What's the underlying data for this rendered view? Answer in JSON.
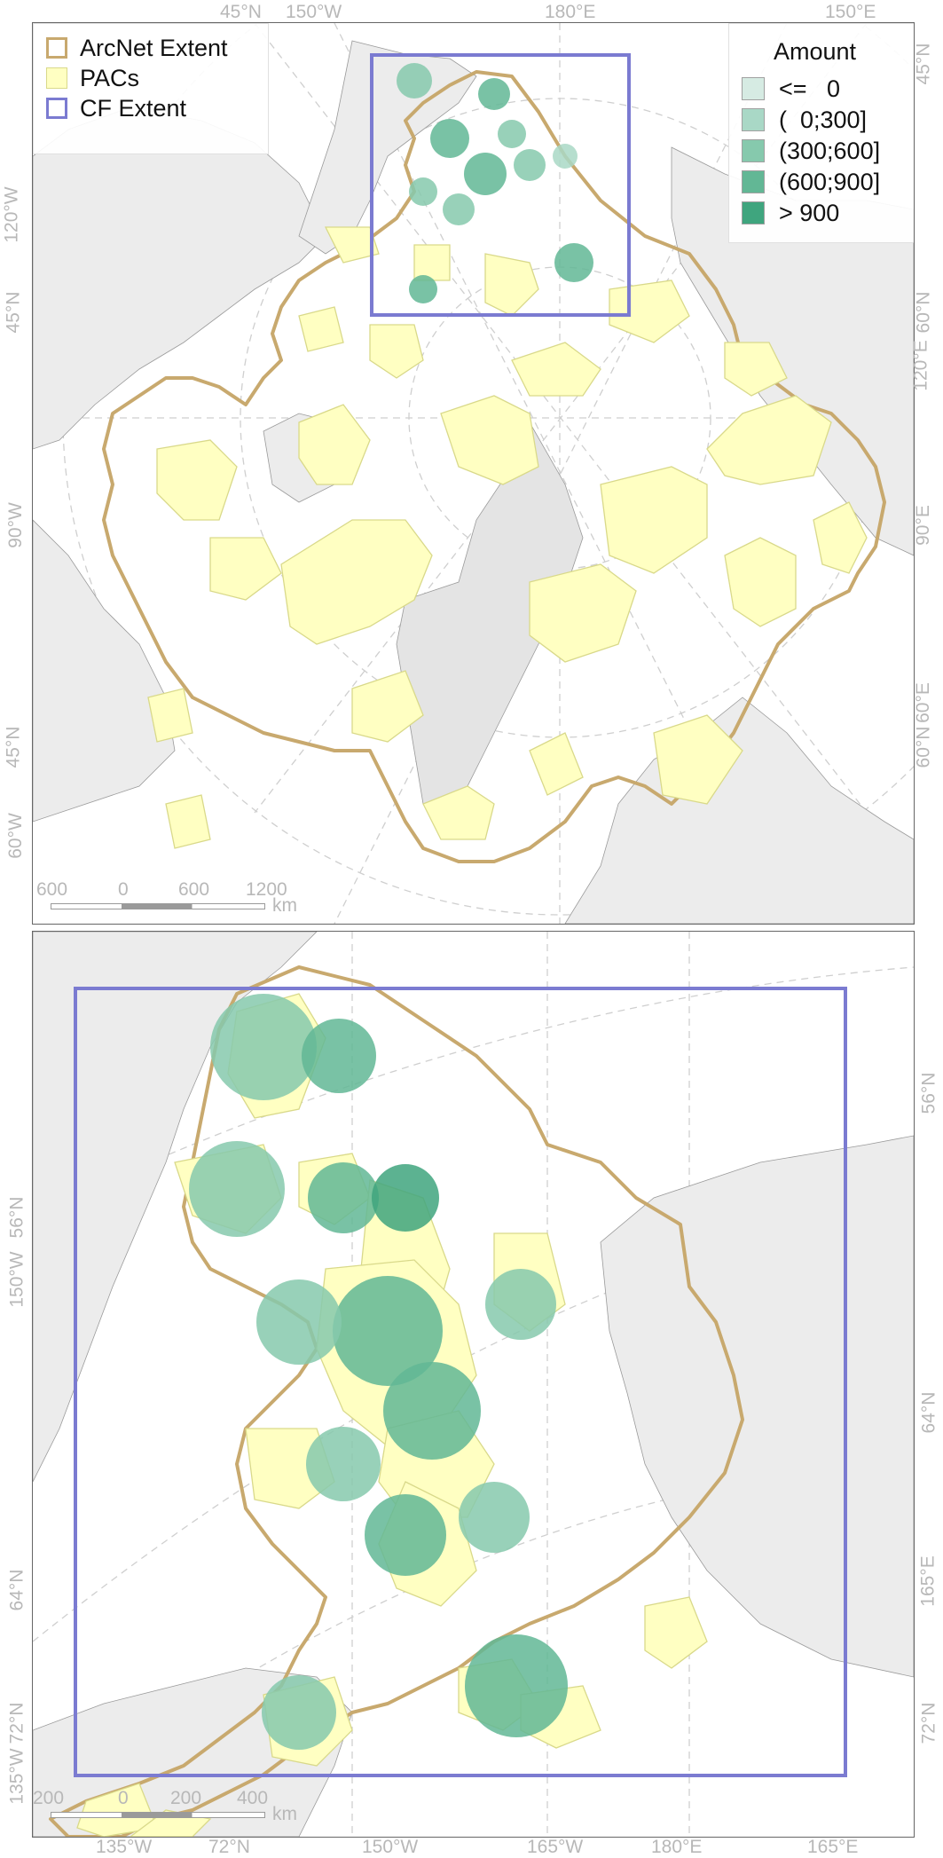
{
  "top_map": {
    "legend_layers": [
      {
        "label": "ArcNet Extent",
        "color": "#c8a96e",
        "style": "outline"
      },
      {
        "label": "PACs",
        "color": "#ffffc2",
        "style": "fill"
      },
      {
        "label": "CF Extent",
        "color": "#7b7bd1",
        "style": "outline"
      }
    ],
    "legend_amount_title": "Amount",
    "legend_amount": [
      {
        "label": "<=   0",
        "color": "#d6ebe3"
      },
      {
        "label": "(  0;300]",
        "color": "#a9d8c6"
      },
      {
        "label": "(300;600]",
        "color": "#86c9ad"
      },
      {
        "label": "(600;900]",
        "color": "#62b795"
      },
      {
        "label": "> 900",
        "color": "#3fa57e"
      }
    ],
    "top_labels": [
      "45°N",
      "150°W",
      "180°E",
      "150°E"
    ],
    "left_labels": [
      "120°W",
      "45°N",
      "90°W",
      "45°N",
      "60°W"
    ],
    "right_labels": [
      "45°N",
      "60°N",
      "120°E",
      "90°E",
      "60°E",
      "60°N"
    ],
    "scale_ticks": [
      "600",
      "0",
      "600",
      "1200"
    ],
    "scale_unit": "km"
  },
  "bottom_map": {
    "left_labels": [
      "56°N",
      "150°W",
      "64°N",
      "72°N",
      "135°W"
    ],
    "right_labels": [
      "56°N",
      "64°N",
      "165°E",
      "72°N"
    ],
    "bottom_labels": [
      "135°W",
      "72°N",
      "150°W",
      "165°W",
      "180°E",
      "165°E"
    ],
    "scale_ticks": [
      "200",
      "0",
      "200",
      "400"
    ],
    "scale_unit": "km"
  },
  "colors": {
    "land": "#ececec",
    "arcnet": "#c8a96e",
    "pac_fill": "#ffffc2",
    "pac_stroke": "#d9d98a",
    "cf_extent": "#7b7bd1",
    "graticule": "#cfcfcf"
  }
}
